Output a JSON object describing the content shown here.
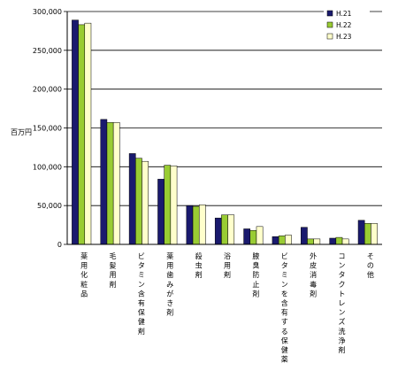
{
  "chart_data": {
    "type": "bar",
    "ylabel": "百万円",
    "ylim": [
      0,
      300000
    ],
    "yticks": [
      "0",
      "50,000",
      "100,000",
      "150,000",
      "200,000",
      "250,000",
      "300,000"
    ],
    "grid": true,
    "legend_position": "top-right",
    "categories": [
      "薬用化粧品",
      "毛髪用剤",
      "ビタミン含有保健剤",
      "薬用歯みがき剤",
      "殺虫剤",
      "浴用剤",
      "腋臭防止剤",
      "ビタミンを含有する保健薬",
      "外皮消毒剤",
      "コンタクトレンズ洗浄剤",
      "その他"
    ],
    "series": [
      {
        "name": "H.21",
        "color": "#1a1a6e",
        "values": [
          289000,
          161000,
          117000,
          84000,
          50000,
          34000,
          20000,
          10000,
          22000,
          8000,
          31000
        ]
      },
      {
        "name": "H.22",
        "color": "#99cc33",
        "values": [
          283000,
          157000,
          111000,
          102000,
          49000,
          38000,
          18000,
          11000,
          7000,
          9000,
          27000
        ]
      },
      {
        "name": "H.23",
        "color": "#ffffcc",
        "values": [
          285000,
          157000,
          107000,
          101000,
          51000,
          38000,
          23000,
          12000,
          7000,
          7000,
          27000
        ]
      }
    ]
  }
}
